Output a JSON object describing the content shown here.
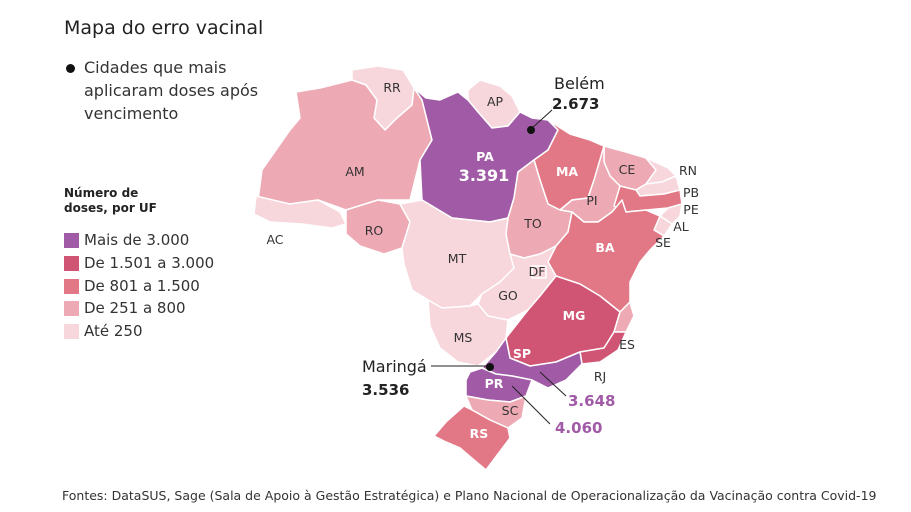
{
  "title": "Mapa do erro vacinal",
  "cities_legend": {
    "label": "Cidades que mais aplicaram doses após vencimento"
  },
  "legend": {
    "title": "Número de doses, por UF",
    "items": [
      {
        "label": "Mais de 3.000",
        "color": "#a05aa6"
      },
      {
        "label": "De 1.501 a 3.000",
        "color": "#d05473"
      },
      {
        "label": "De 801 a 1.500",
        "color": "#e27886"
      },
      {
        "label": "De 251 a 800",
        "color": "#eeaab4"
      },
      {
        "label": "Até 250",
        "color": "#f7d6dc"
      }
    ]
  },
  "states": [
    {
      "code": "RR",
      "fill": "#f7d6dc"
    },
    {
      "code": "AP",
      "fill": "#f7d6dc"
    },
    {
      "code": "AM",
      "fill": "#eeaab4"
    },
    {
      "code": "PA",
      "fill": "#a05aa6",
      "value": "3.391"
    },
    {
      "code": "AC",
      "fill": "#f7d6dc"
    },
    {
      "code": "RO",
      "fill": "#eeaab4"
    },
    {
      "code": "MT",
      "fill": "#f7d6dc"
    },
    {
      "code": "MA",
      "fill": "#e27886"
    },
    {
      "code": "CE",
      "fill": "#eeaab4"
    },
    {
      "code": "RN",
      "fill": "#f7d6dc"
    },
    {
      "code": "PB",
      "fill": "#f7d6dc"
    },
    {
      "code": "PE",
      "fill": "#e27886"
    },
    {
      "code": "AL",
      "fill": "#f7d6dc"
    },
    {
      "code": "SE",
      "fill": "#f7d6dc"
    },
    {
      "code": "PI",
      "fill": "#eeaab4"
    },
    {
      "code": "TO",
      "fill": "#eeaab4"
    },
    {
      "code": "BA",
      "fill": "#e27886"
    },
    {
      "code": "DF",
      "fill": "#f7d6dc"
    },
    {
      "code": "GO",
      "fill": "#f7d6dc"
    },
    {
      "code": "MG",
      "fill": "#d05473"
    },
    {
      "code": "ES",
      "fill": "#eeaab4"
    },
    {
      "code": "MS",
      "fill": "#f7d6dc"
    },
    {
      "code": "SP",
      "fill": "#a05aa6"
    },
    {
      "code": "RJ",
      "fill": "#d05473"
    },
    {
      "code": "PR",
      "fill": "#a05aa6"
    },
    {
      "code": "SC",
      "fill": "#eeaab4"
    },
    {
      "code": "RS",
      "fill": "#e27886"
    }
  ],
  "cities": [
    {
      "name": "Belém",
      "value": "2.673"
    },
    {
      "name": "Maringá",
      "value": "3.536"
    }
  ],
  "callouts": [
    {
      "value": "3.648",
      "color": "#a05aa6"
    },
    {
      "value": "4.060",
      "color": "#a05aa6"
    }
  ],
  "source": "Fontes: DataSUS, Sage (Sala de Apoio à Gestão Estratégica) e Plano Nacional de Operacionalização da Vacinação contra Covid-19"
}
